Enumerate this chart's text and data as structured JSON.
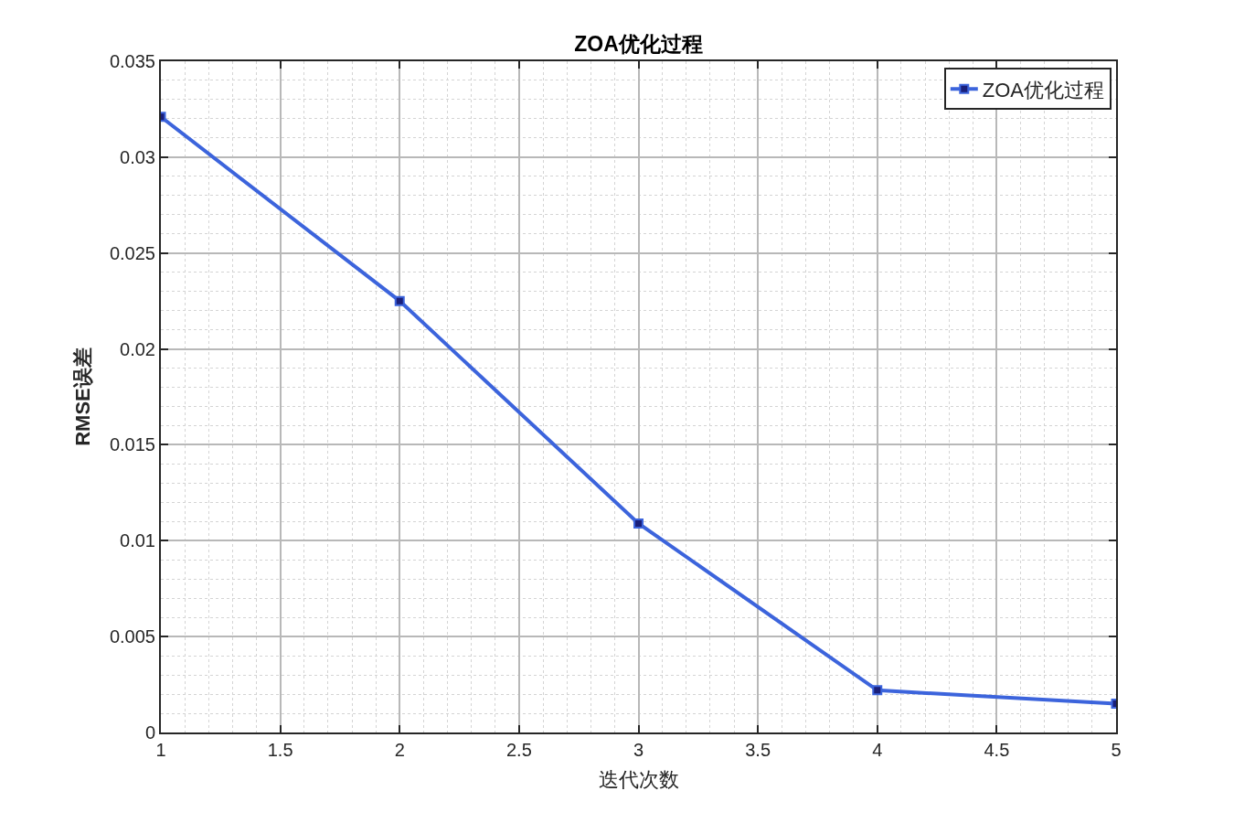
{
  "chart_data": {
    "type": "line",
    "title": "ZOA优化过程",
    "xlabel": "迭代次数",
    "ylabel": "RMSE误差",
    "x": [
      1,
      2,
      3,
      4,
      5
    ],
    "series": [
      {
        "name": "ZOA优化过程",
        "color": "#3c64dc",
        "values": [
          0.0321,
          0.0225,
          0.0109,
          0.0022,
          0.0015
        ]
      }
    ],
    "xlim": [
      1,
      5
    ],
    "xticks": [
      1,
      1.5,
      2,
      2.5,
      3,
      3.5,
      4,
      4.5,
      5
    ],
    "ylim": [
      0,
      0.035
    ],
    "yticks": [
      0,
      0.005,
      0.01,
      0.015,
      0.02,
      0.025,
      0.03,
      0.035
    ],
    "grid": true,
    "legend": "top right",
    "marker": "square",
    "line_style": "solid"
  }
}
